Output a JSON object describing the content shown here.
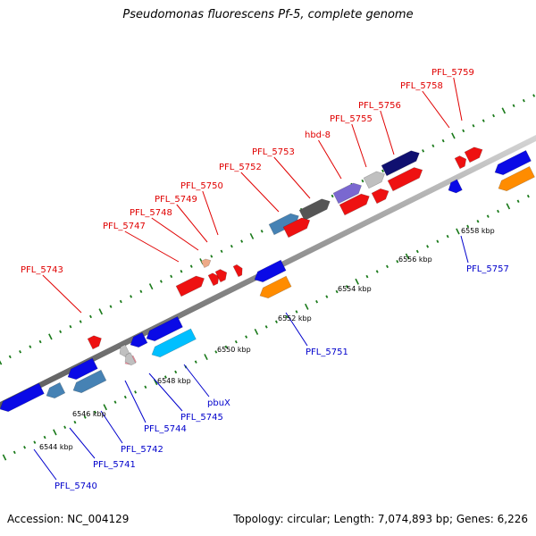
{
  "header": {
    "title": "Pseudomonas fluorescens Pf-5, complete genome"
  },
  "footer": {
    "accession": "Accession: NC_004129",
    "stats": "Topology: circular; Length: 7,074,893 bp; Genes: 6,226"
  },
  "colors": {
    "forward_strand_labels": "#e00000",
    "reverse_strand_labels": "#0000cc",
    "tick": "#1a7a1a",
    "backbone": "#8a8a8a"
  },
  "scale_labels": [
    "6544 kbp",
    "6546 kbp",
    "6548 kbp",
    "6550 kbp",
    "6552 kbp",
    "6554 kbp",
    "6556 kbp",
    "6558 kbp"
  ],
  "forward_genes": [
    {
      "label": "PFL_5743",
      "color": "#ee1111"
    },
    {
      "label": "PFL_5747",
      "color": "#ee1111"
    },
    {
      "label": "PFL_5748",
      "color": "#eeaa88"
    },
    {
      "label": "PFL_5749",
      "color": "#ee1111"
    },
    {
      "label": "PFL_5750",
      "color": "#ee1111"
    },
    {
      "label": "PFL_5752",
      "color": "#4682b4"
    },
    {
      "label": "PFL_5753",
      "color": "#555555"
    },
    {
      "label": "hbd-8",
      "color": "#7a68d0"
    },
    {
      "label": "PFL_5755",
      "color": "#c0c0c0"
    },
    {
      "label": "PFL_5756",
      "color": "#101070"
    },
    {
      "label": "PFL_5758",
      "color": "#ee1111"
    },
    {
      "label": "PFL_5759",
      "color": "#ee1111"
    }
  ],
  "reverse_genes": [
    {
      "label": "PFL_5740",
      "color": "#0a0ae6"
    },
    {
      "label": "PFL_5741",
      "color": "#4682b4"
    },
    {
      "label": "PFL_5742",
      "color": "#0a0ae6"
    },
    {
      "label": "PFL_5744",
      "color": "#c0c0c0"
    },
    {
      "label": "PFL_5745",
      "color": "#ff8fa0"
    },
    {
      "label": "pbuX",
      "color": "#00bfff"
    },
    {
      "label": "PFL_5751",
      "color": "#ff8c00"
    },
    {
      "label": "PFL_5757",
      "color": "#0a0ae6"
    }
  ]
}
